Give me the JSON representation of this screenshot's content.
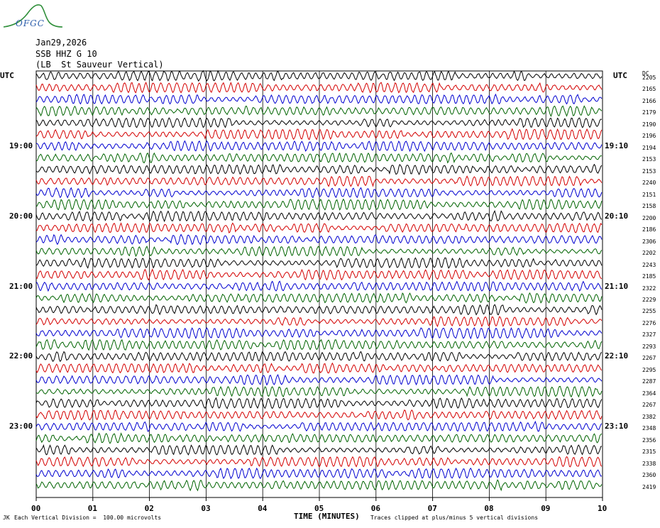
{
  "header": {
    "date": "Jan29,2026",
    "station": "SSB HHZ G 10",
    "location": "(LB  St Sauveur Vertical)",
    "logo": "OFGC"
  },
  "utc_label": "UTC",
  "time_labels_left": [
    "19:00",
    "20:00",
    "21:00",
    "22:00",
    "23:00"
  ],
  "time_labels_right": [
    "19:10",
    "20:10",
    "21:10",
    "22:10",
    "23:10"
  ],
  "dc_header": "DC",
  "footer": {
    "vertical_division": "Each Vertical Division =  100.00 microvolts",
    "clip_note": "Traces clipped at plus/minus 5 vertical divisions",
    "corner_mark": "JK"
  },
  "colors": {
    "trace_cycle": [
      "#000000",
      "#d40000",
      "#0000d0",
      "#006400"
    ],
    "grid": "#000000"
  },
  "chart_data": {
    "type": "line",
    "title": "",
    "xlabel": "TIME (MINUTES)",
    "xticks": [
      "00",
      "01",
      "02",
      "03",
      "04",
      "05",
      "06",
      "07",
      "08",
      "09",
      "10"
    ],
    "xlim": [
      0,
      10
    ],
    "trace_count": 36,
    "dc_offsets": [
      2205,
      2165,
      2166,
      2179,
      2190,
      2196,
      2194,
      2153,
      2153,
      2240,
      2151,
      2158,
      2200,
      2186,
      2306,
      2202,
      2243,
      2185,
      2322,
      2229,
      2255,
      2276,
      2327,
      2293,
      2267,
      2295,
      2287,
      2364,
      2267,
      2382,
      2348,
      2356,
      2315,
      2338,
      2360,
      2419
    ]
  }
}
